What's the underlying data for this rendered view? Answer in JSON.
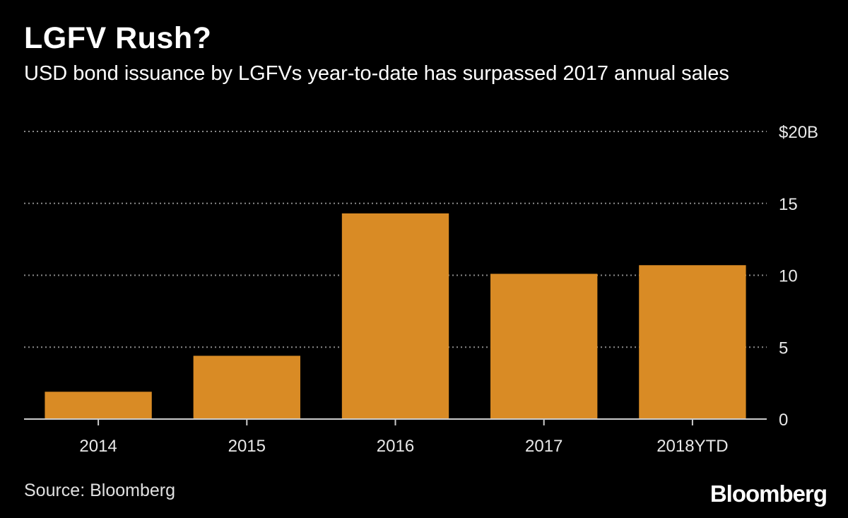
{
  "chart_data": {
    "type": "bar",
    "title": "LGFV Rush?",
    "subtitle": "USD bond issuance by LGFVs year-to-date has surpassed 2017 annual sales",
    "categories": [
      "2014",
      "2015",
      "2016",
      "2017",
      "2018YTD"
    ],
    "values": [
      1.9,
      4.4,
      14.3,
      10.1,
      10.7
    ],
    "ylim": [
      0,
      20
    ],
    "yticks": [
      0,
      5,
      10,
      15,
      20
    ],
    "ytick_labels": [
      "0",
      "5",
      "10",
      "15",
      "$20B"
    ],
    "xlabel": "",
    "ylabel": "",
    "grid": true,
    "bar_color": "#d98b25",
    "source": "Source: Bloomberg",
    "logo": "Bloomberg"
  }
}
